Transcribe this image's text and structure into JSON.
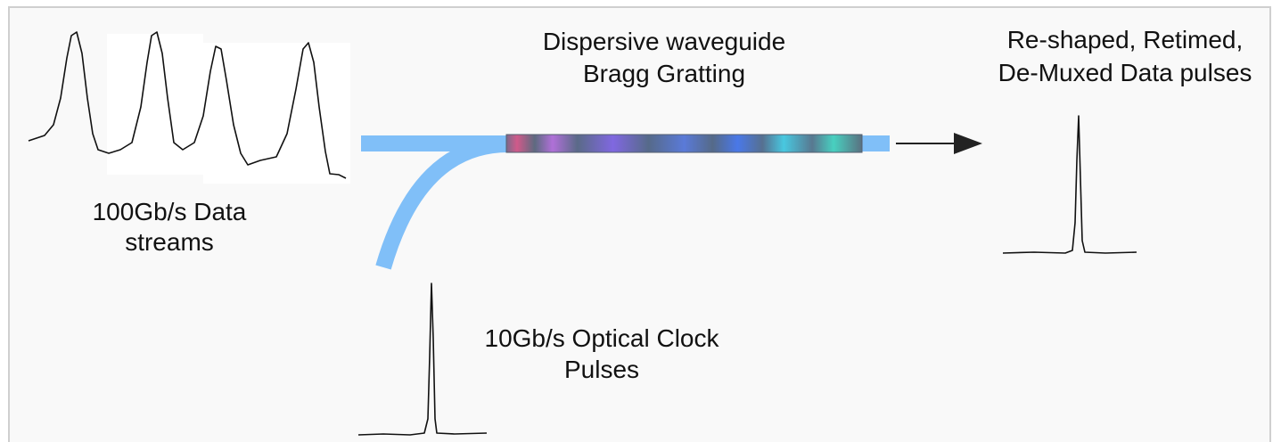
{
  "labels": {
    "grating": [
      "Dispersive waveguide",
      "Bragg Gratting"
    ],
    "output": [
      "Re-shaped, Retimed,",
      "De-Muxed Data pulses"
    ],
    "input": [
      "100Gb/s Data",
      "streams"
    ],
    "clock": [
      "10Gb/s Optical Clock",
      "Pulses"
    ]
  }
}
